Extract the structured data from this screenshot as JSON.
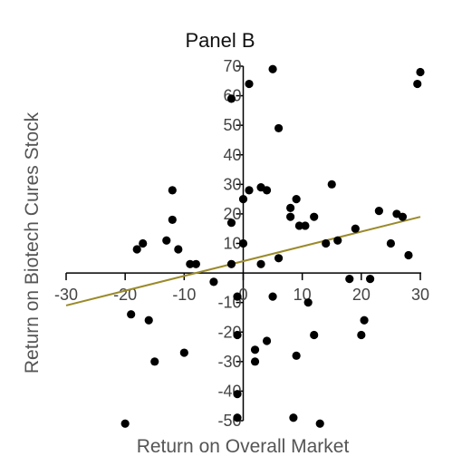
{
  "chart_data": {
    "type": "scatter",
    "title": "Panel B",
    "xlabel": "Return on Overall Market",
    "ylabel": "Return on Biotech Cures Stock",
    "xlim": [
      -30,
      30
    ],
    "ylim": [
      -50,
      70
    ],
    "x_ticks": [
      -30,
      -20,
      -10,
      0,
      10,
      20,
      30
    ],
    "y_ticks": [
      -50,
      -40,
      -30,
      -20,
      -10,
      10,
      20,
      30,
      40,
      50,
      60,
      70
    ],
    "x_tick_labels": [
      "-30",
      "-20",
      "-10",
      "0",
      "10",
      "20",
      "30"
    ],
    "y_tick_labels": [
      "-50",
      "-40",
      "-30",
      "-20",
      "-10",
      "10",
      "20",
      "30",
      "40",
      "50",
      "60",
      "70"
    ],
    "grid": false,
    "colors": {
      "points": "#000000",
      "regression_line": "#9a8a2a",
      "axes": "#000000"
    },
    "series": [
      {
        "values": [
          {
            "x": -2,
            "y": 59
          },
          {
            "x": 1,
            "y": 64
          },
          {
            "x": 5,
            "y": 69
          },
          {
            "x": 6,
            "y": 49
          },
          {
            "x": 30,
            "y": 68
          },
          {
            "x": 29.5,
            "y": 64
          },
          {
            "x": 15,
            "y": 30
          },
          {
            "x": -12,
            "y": 28
          },
          {
            "x": 1,
            "y": 28
          },
          {
            "x": 3,
            "y": 29
          },
          {
            "x": 4,
            "y": 28
          },
          {
            "x": 0,
            "y": 25
          },
          {
            "x": 9,
            "y": 25
          },
          {
            "x": 8,
            "y": 22
          },
          {
            "x": 8,
            "y": 19
          },
          {
            "x": 12,
            "y": 19
          },
          {
            "x": 9.5,
            "y": 16
          },
          {
            "x": 10.5,
            "y": 16
          },
          {
            "x": 23,
            "y": 21
          },
          {
            "x": 26,
            "y": 20
          },
          {
            "x": 27,
            "y": 19
          },
          {
            "x": -12,
            "y": 18
          },
          {
            "x": -2,
            "y": 17
          },
          {
            "x": 19,
            "y": 15
          },
          {
            "x": 16,
            "y": 11
          },
          {
            "x": 14,
            "y": 10
          },
          {
            "x": 25,
            "y": 10
          },
          {
            "x": 28,
            "y": 6
          },
          {
            "x": -13,
            "y": 11
          },
          {
            "x": -17,
            "y": 10
          },
          {
            "x": -18,
            "y": 8
          },
          {
            "x": -11,
            "y": 8
          },
          {
            "x": 0,
            "y": 10
          },
          {
            "x": 6,
            "y": 5
          },
          {
            "x": 3,
            "y": 3
          },
          {
            "x": -2,
            "y": 3
          },
          {
            "x": -9,
            "y": 3
          },
          {
            "x": -8,
            "y": 3
          },
          {
            "x": -5,
            "y": -3
          },
          {
            "x": 18,
            "y": -2
          },
          {
            "x": 21.5,
            "y": -2
          },
          {
            "x": -1,
            "y": -8
          },
          {
            "x": 5,
            "y": -8
          },
          {
            "x": 11,
            "y": -10
          },
          {
            "x": -19,
            "y": -14
          },
          {
            "x": -16,
            "y": -16
          },
          {
            "x": 20.5,
            "y": -16
          },
          {
            "x": -1,
            "y": -21
          },
          {
            "x": 4,
            "y": -23
          },
          {
            "x": 12,
            "y": -21
          },
          {
            "x": 20,
            "y": -21
          },
          {
            "x": -10,
            "y": -27
          },
          {
            "x": 2,
            "y": -26
          },
          {
            "x": 9,
            "y": -28
          },
          {
            "x": -15,
            "y": -30
          },
          {
            "x": 2,
            "y": -30
          },
          {
            "x": -1,
            "y": -41
          },
          {
            "x": -20,
            "y": -51
          },
          {
            "x": -1,
            "y": -49
          },
          {
            "x": 8.5,
            "y": -49
          },
          {
            "x": 13,
            "y": -51
          }
        ]
      }
    ],
    "regression_line": {
      "x": [
        -30,
        30
      ],
      "y": [
        -11,
        19
      ]
    }
  }
}
